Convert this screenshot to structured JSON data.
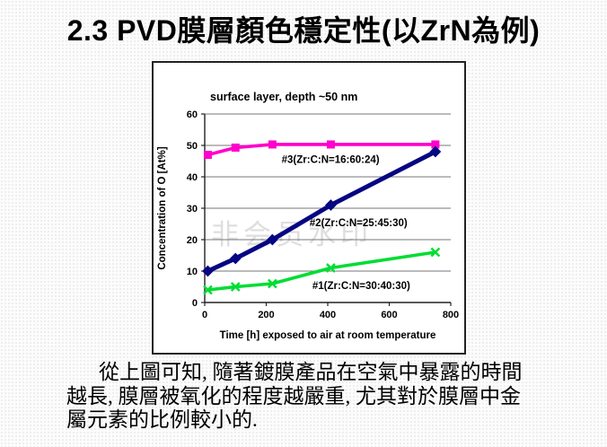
{
  "slide": {
    "title": "2.3  PVD膜層顏色穩定性(以ZrN為例)",
    "watermark": "非会员水印",
    "body_text": "從上圖可知, 隨著鍍膜產品在空氣中暴露的時間\n越長, 膜層被氧化的程度越嚴重, 尤其對於膜層中金\n屬元素的比例較小的."
  },
  "chart_data": {
    "type": "line",
    "title": "surface layer, depth ~50 nm",
    "xlabel": "Time [h] exposed to air at room temperature",
    "ylabel": "Concentration of O [At%]",
    "xlim": [
      0,
      800
    ],
    "ylim": [
      0,
      60
    ],
    "xticks": [
      0,
      200,
      400,
      600,
      800
    ],
    "yticks": [
      0,
      10,
      20,
      30,
      40,
      50,
      60
    ],
    "grid": "horizontal-only",
    "legend": "inline-annotations",
    "axis_color": "#222222",
    "grid_color": "#777777",
    "series": [
      {
        "name": "#3(Zr:C:N=16:60:24)",
        "marker": "square",
        "color": "#FF00CC",
        "line_width": 3.6,
        "x": [
          10,
          100,
          220,
          410,
          750
        ],
        "y": [
          47,
          49.3,
          50.3,
          50.3,
          50.3
        ],
        "label_x": 250,
        "label_y": 44.5
      },
      {
        "name": "#2(Zr:C:N=25:45:30)",
        "marker": "diamond",
        "color": "#060682",
        "line_width": 5,
        "x": [
          10,
          100,
          220,
          410,
          750
        ],
        "y": [
          10,
          14,
          20,
          31,
          48
        ],
        "label_x": 341,
        "label_y": 24.3
      },
      {
        "name": "#1(Zr:C:N=30:40:30)",
        "marker": "x",
        "color": "#00DD33",
        "line_width": 3.6,
        "x": [
          10,
          100,
          220,
          410,
          750
        ],
        "y": [
          4,
          5,
          6,
          11,
          16
        ],
        "label_x": 350,
        "label_y": 4.3
      }
    ]
  }
}
